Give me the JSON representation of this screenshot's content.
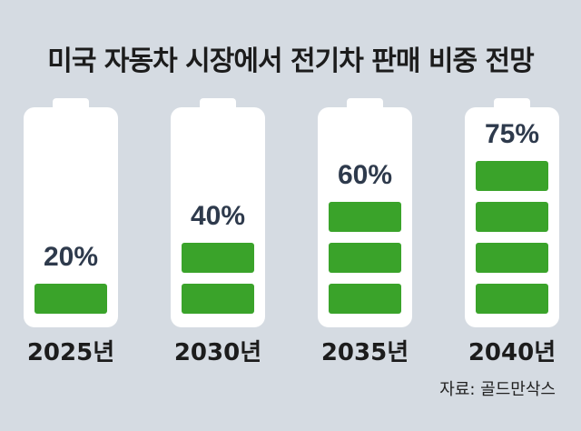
{
  "title": "미국 자동차 시장에서 전기차 판매 비중 전망",
  "source": "자료: 골드만삭스",
  "colors": {
    "background": "#d5dbe2",
    "battery": "#ffffff",
    "fill": "#3aa32a",
    "percent_text": "#2e3a4c",
    "year_text": "#1c1c1c"
  },
  "chart_data": {
    "type": "bar",
    "title": "미국 자동차 시장에서 전기차 판매 비중 전망",
    "xlabel": "",
    "ylabel": "",
    "ylim": [
      0,
      100
    ],
    "categories": [
      "2025년",
      "2030년",
      "2035년",
      "2040년"
    ],
    "values": [
      20,
      40,
      60,
      75
    ],
    "value_labels": [
      "20%",
      "40%",
      "60%",
      "75%"
    ],
    "segments": [
      1,
      2,
      3,
      4
    ]
  }
}
